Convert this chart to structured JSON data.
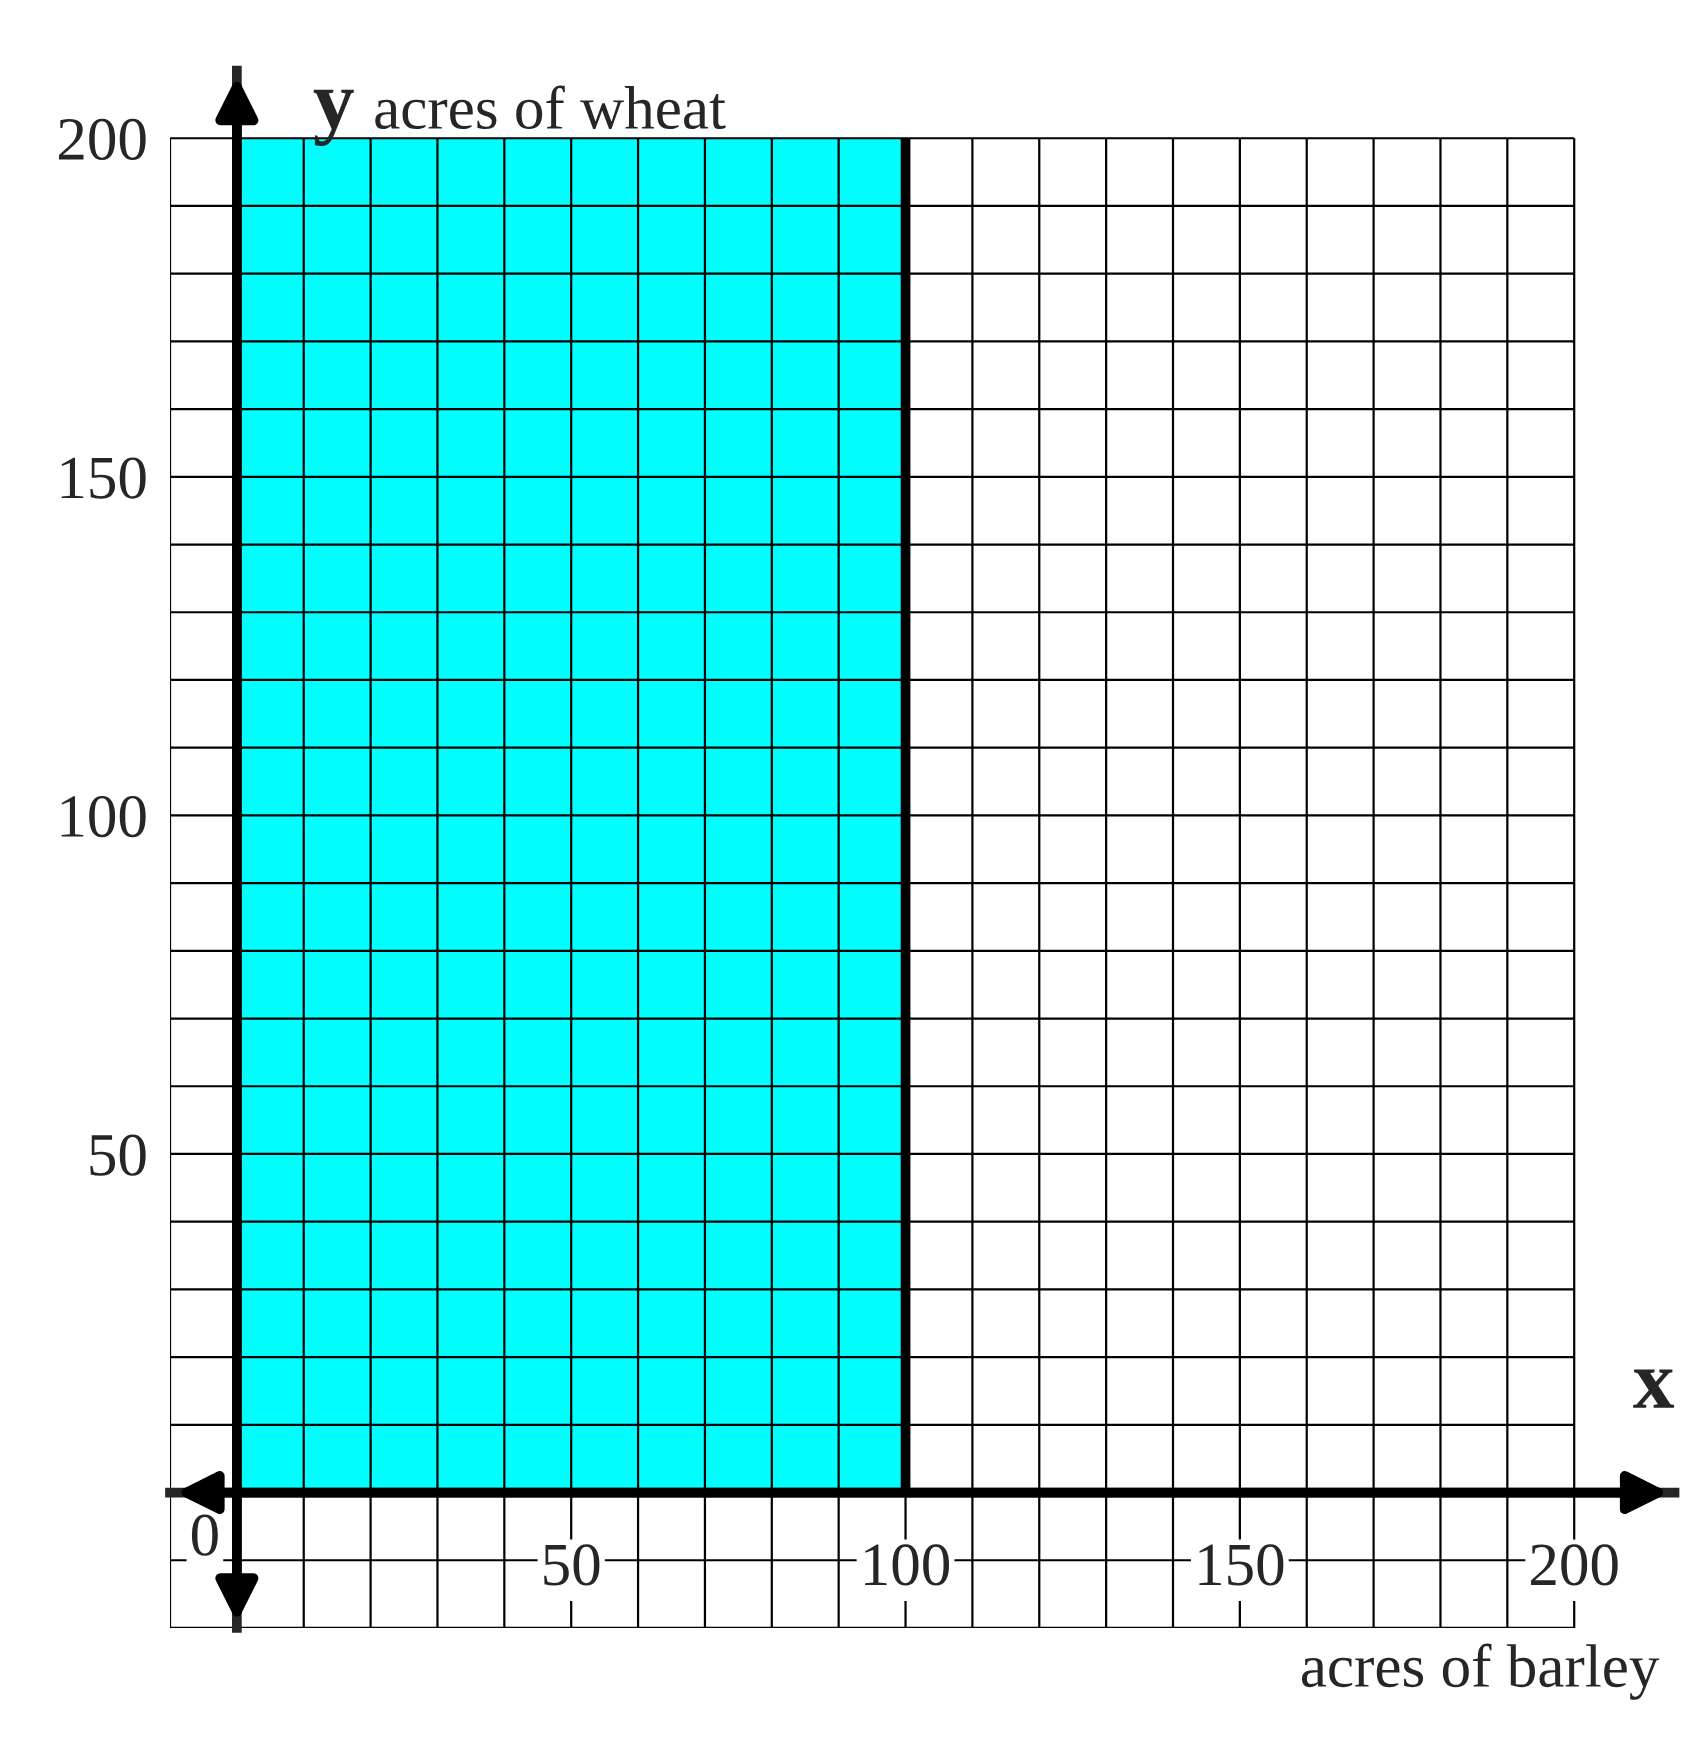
{
  "chart_data": {
    "type": "area",
    "xlabel": "acres of barley",
    "ylabel": "acres of wheat",
    "annotations": [
      "x",
      "y",
      "0"
    ],
    "series": [
      {
        "x": [
          0,
          100
        ],
        "values": [
          200,
          200
        ],
        "color": "#00ffff"
      }
    ],
    "ref_lines": [
      {
        "axis": "x",
        "value": 100,
        "color": "#000000"
      }
    ],
    "xlim": [
      -10,
      215
    ],
    "ylim": [
      -20,
      210
    ],
    "xticks": [
      {
        "value": -10,
        "label": null
      },
      {
        "value": 0,
        "label": null
      },
      {
        "value": 10,
        "label": null
      },
      {
        "value": 20,
        "label": null
      },
      {
        "value": 30,
        "label": null
      },
      {
        "value": 40,
        "label": null
      },
      50,
      {
        "value": 60,
        "label": null
      },
      {
        "value": 70,
        "label": null
      },
      {
        "value": 80,
        "label": null
      },
      {
        "value": 90,
        "label": null
      },
      100,
      {
        "value": 110,
        "label": null
      },
      {
        "value": 120,
        "label": null
      },
      {
        "value": 130,
        "label": null
      },
      {
        "value": 140,
        "label": null
      },
      150,
      {
        "value": 160,
        "label": null
      },
      {
        "value": 170,
        "label": null
      },
      {
        "value": 180,
        "label": null
      },
      {
        "value": 190,
        "label": null
      },
      200
    ],
    "yticks": [
      {
        "value": -20,
        "label": null
      },
      {
        "value": -10,
        "label": null
      },
      {
        "value": 10,
        "label": null
      },
      {
        "value": 20,
        "label": null
      },
      {
        "value": 30,
        "label": null
      },
      {
        "value": 40,
        "label": null
      },
      50,
      {
        "value": 60,
        "label": null
      },
      {
        "value": 70,
        "label": null
      },
      {
        "value": 80,
        "label": null
      },
      {
        "value": 90,
        "label": null
      },
      100,
      {
        "value": 110,
        "label": null
      },
      {
        "value": 120,
        "label": null
      },
      {
        "value": 130,
        "label": null
      },
      {
        "value": 140,
        "label": null
      },
      150,
      {
        "value": 160,
        "label": null
      },
      {
        "value": 170,
        "label": null
      },
      {
        "value": 180,
        "label": null
      },
      {
        "value": 190,
        "label": null
      },
      200
    ],
    "grid": true
  }
}
